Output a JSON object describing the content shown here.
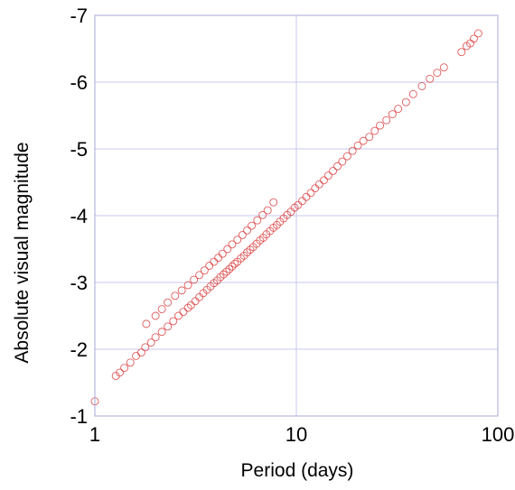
{
  "chart_data": {
    "type": "scatter",
    "title": "",
    "xlabel": "Period (days)",
    "ylabel": "Absolute visual magnitude",
    "xscale": "log",
    "xlim": [
      1,
      100
    ],
    "ylim": [
      -1,
      -7
    ],
    "y_axis_inverted": true,
    "grid": true,
    "legend": "none",
    "x_ticks": [
      "1",
      "10",
      "100"
    ],
    "y_ticks": [
      "-1",
      "-2",
      "-3",
      "-4",
      "-5",
      "-6",
      "-7"
    ],
    "marker": "open-circle",
    "colors": {
      "marker": "#d94040",
      "grid": "#c8c8ec",
      "frame": "#a9a9da"
    },
    "series": [
      {
        "name": "",
        "points": [
          [
            1.0,
            -1.22
          ],
          [
            1.27,
            -1.6
          ],
          [
            1.33,
            -1.65
          ],
          [
            1.4,
            -1.72
          ],
          [
            1.5,
            -1.8
          ],
          [
            1.6,
            -1.9
          ],
          [
            1.7,
            -1.95
          ],
          [
            1.78,
            -2.03
          ],
          [
            1.9,
            -2.1
          ],
          [
            2.0,
            -2.18
          ],
          [
            2.15,
            -2.26
          ],
          [
            2.3,
            -2.34
          ],
          [
            2.45,
            -2.42
          ],
          [
            2.6,
            -2.5
          ],
          [
            2.75,
            -2.56
          ],
          [
            2.9,
            -2.62
          ],
          [
            3.0,
            -2.66
          ],
          [
            3.15,
            -2.72
          ],
          [
            3.3,
            -2.78
          ],
          [
            3.45,
            -2.84
          ],
          [
            3.6,
            -2.89
          ],
          [
            3.75,
            -2.94
          ],
          [
            3.9,
            -2.99
          ],
          [
            4.05,
            -3.03
          ],
          [
            4.2,
            -3.08
          ],
          [
            4.35,
            -3.12
          ],
          [
            4.5,
            -3.16
          ],
          [
            4.65,
            -3.2
          ],
          [
            4.8,
            -3.24
          ],
          [
            4.95,
            -3.28
          ],
          [
            5.1,
            -3.31
          ],
          [
            5.3,
            -3.36
          ],
          [
            5.5,
            -3.4
          ],
          [
            5.7,
            -3.45
          ],
          [
            5.9,
            -3.49
          ],
          [
            6.1,
            -3.53
          ],
          [
            6.35,
            -3.58
          ],
          [
            6.6,
            -3.63
          ],
          [
            6.85,
            -3.67
          ],
          [
            7.1,
            -3.72
          ],
          [
            7.4,
            -3.77
          ],
          [
            7.7,
            -3.82
          ],
          [
            8.0,
            -3.86
          ],
          [
            8.3,
            -3.91
          ],
          [
            8.65,
            -3.96
          ],
          [
            9.0,
            -4.01
          ],
          [
            9.4,
            -4.06
          ],
          [
            9.8,
            -4.12
          ],
          [
            10.2,
            -4.16
          ],
          [
            10.7,
            -4.22
          ],
          [
            11.2,
            -4.28
          ],
          [
            11.8,
            -4.34
          ],
          [
            12.4,
            -4.41
          ],
          [
            13.0,
            -4.47
          ],
          [
            13.7,
            -4.53
          ],
          [
            14.4,
            -4.6
          ],
          [
            15.2,
            -4.67
          ],
          [
            16.0,
            -4.74
          ],
          [
            16.9,
            -4.81
          ],
          [
            17.9,
            -4.89
          ],
          [
            19.0,
            -4.97
          ],
          [
            20.2,
            -5.05
          ],
          [
            21.5,
            -5.12
          ],
          [
            23.0,
            -5.18
          ],
          [
            24.5,
            -5.27
          ],
          [
            26.0,
            -5.35
          ],
          [
            28.0,
            -5.43
          ],
          [
            30.0,
            -5.52
          ],
          [
            32.0,
            -5.6
          ],
          [
            35.0,
            -5.7
          ],
          [
            38.0,
            -5.82
          ],
          [
            42.0,
            -5.94
          ],
          [
            46.0,
            -6.05
          ],
          [
            50.0,
            -6.14
          ],
          [
            54.0,
            -6.22
          ],
          [
            66.0,
            -6.45
          ],
          [
            70.0,
            -6.54
          ],
          [
            73.0,
            -6.58
          ],
          [
            76.0,
            -6.65
          ],
          [
            80.0,
            -6.73
          ],
          [
            1.8,
            -2.38
          ],
          [
            2.0,
            -2.5
          ],
          [
            2.15,
            -2.6
          ],
          [
            2.3,
            -2.7
          ],
          [
            2.5,
            -2.8
          ],
          [
            2.7,
            -2.88
          ],
          [
            2.9,
            -2.96
          ],
          [
            3.1,
            -3.04
          ],
          [
            3.3,
            -3.11
          ],
          [
            3.5,
            -3.18
          ],
          [
            3.7,
            -3.25
          ],
          [
            3.9,
            -3.31
          ],
          [
            4.1,
            -3.37
          ],
          [
            4.3,
            -3.43
          ],
          [
            4.55,
            -3.5
          ],
          [
            4.8,
            -3.57
          ],
          [
            5.1,
            -3.64
          ],
          [
            5.4,
            -3.71
          ],
          [
            5.7,
            -3.78
          ],
          [
            6.0,
            -3.85
          ],
          [
            6.4,
            -3.93
          ],
          [
            6.8,
            -4.01
          ],
          [
            7.2,
            -4.08
          ],
          [
            7.7,
            -4.2
          ]
        ]
      }
    ]
  }
}
